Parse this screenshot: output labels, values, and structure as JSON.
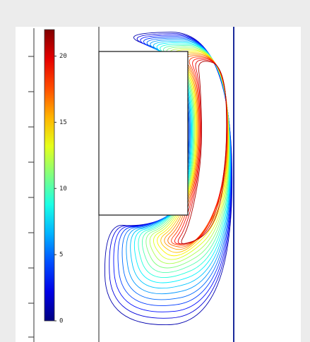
{
  "chart_data": {
    "type": "contour",
    "colormap": "jet",
    "clim": [
      0,
      22
    ],
    "cticks": [
      0,
      5,
      10,
      15,
      20
    ],
    "levels": [
      1,
      2,
      3,
      4,
      5,
      6,
      7,
      8,
      9,
      10,
      11,
      12,
      13,
      14,
      15,
      16,
      17,
      18,
      19,
      20,
      21
    ]
  }
}
